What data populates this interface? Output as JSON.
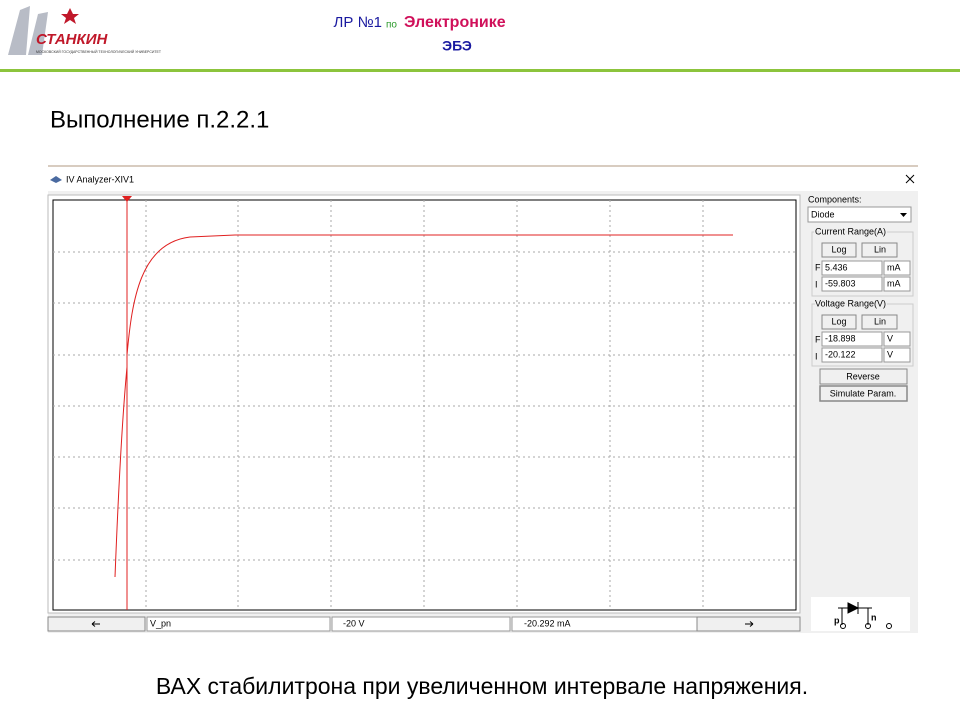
{
  "logo": {
    "name": "СТАНКИН",
    "subtitle": "МОСКОВСКИЙ ГОСУДАРСТВЕННЫЙ ТЕХНОЛОГИЧЕСКИЙ УНИВЕРСИТЕТ"
  },
  "header": {
    "lab": "ЛР №1",
    "by": "по",
    "subject": "Электронике",
    "code": "ЭБЭ"
  },
  "heading": "Выполнение п.2.2.1",
  "window": {
    "title": "IV Analyzer-XIV1",
    "panel": {
      "components_label": "Components:",
      "component": "Diode",
      "current_range": {
        "title": "Current Range(A)",
        "log": "Log",
        "lin": "Lin",
        "f_label": "F",
        "f_value": "5.436",
        "f_unit": "mA",
        "i_label": "I",
        "i_value": "-59.803",
        "i_unit": "mA"
      },
      "voltage_range": {
        "title": "Voltage Range(V)",
        "log": "Log",
        "lin": "Lin",
        "f_label": "F",
        "f_value": "-18.898",
        "f_unit": "V",
        "i_label": "I",
        "i_value": "-20.122",
        "i_unit": "V"
      },
      "reverse": "Reverse",
      "simulate": "Simulate Param.",
      "terminal_p": "p",
      "terminal_n": "n"
    },
    "status": {
      "variable": "V_pn",
      "voltage": "-20  V",
      "current": "-20.292 mA"
    }
  },
  "caption": "ВАХ стабилитрона при увеличенном интервале напряжения."
}
